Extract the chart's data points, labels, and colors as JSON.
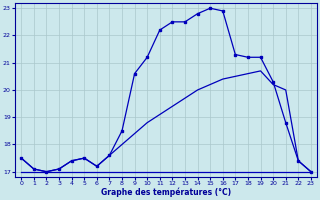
{
  "title": "Graphe des températures (°C)",
  "background_color": "#cce8ec",
  "line_color": "#0000bb",
  "xlim": [
    -0.5,
    23.5
  ],
  "ylim": [
    16.8,
    23.2
  ],
  "yticks": [
    17,
    18,
    19,
    20,
    21,
    22,
    23
  ],
  "xticks": [
    0,
    1,
    2,
    3,
    4,
    5,
    6,
    7,
    8,
    9,
    10,
    11,
    12,
    13,
    14,
    15,
    16,
    17,
    18,
    19,
    20,
    21,
    22,
    23
  ],
  "line1_x": [
    0,
    1,
    2,
    3,
    4,
    5,
    6,
    7,
    8,
    9,
    10,
    11,
    12,
    13,
    14,
    15,
    16,
    17,
    18,
    19,
    20,
    21,
    22,
    23
  ],
  "line1_y": [
    17.5,
    17.1,
    17.0,
    17.1,
    17.4,
    17.5,
    17.2,
    17.6,
    18.5,
    20.6,
    21.2,
    22.2,
    22.5,
    22.5,
    22.8,
    23.0,
    22.9,
    21.3,
    21.2,
    21.2,
    20.3,
    18.8,
    17.4,
    17.0
  ],
  "line2_x": [
    0,
    1,
    2,
    3,
    4,
    5,
    6,
    7,
    8,
    9,
    10,
    11,
    12,
    13,
    14,
    15,
    16,
    17,
    18,
    19,
    20,
    21,
    22,
    23
  ],
  "line2_y": [
    17.5,
    17.1,
    17.0,
    17.1,
    17.4,
    17.5,
    17.2,
    17.6,
    18.0,
    18.4,
    18.8,
    19.1,
    19.4,
    19.7,
    20.0,
    20.2,
    20.4,
    20.5,
    20.6,
    20.7,
    20.2,
    20.0,
    17.4,
    17.0
  ],
  "line3_x": [
    0,
    14,
    14,
    23
  ],
  "line3_y": [
    17.0,
    17.0,
    17.0,
    17.0
  ]
}
